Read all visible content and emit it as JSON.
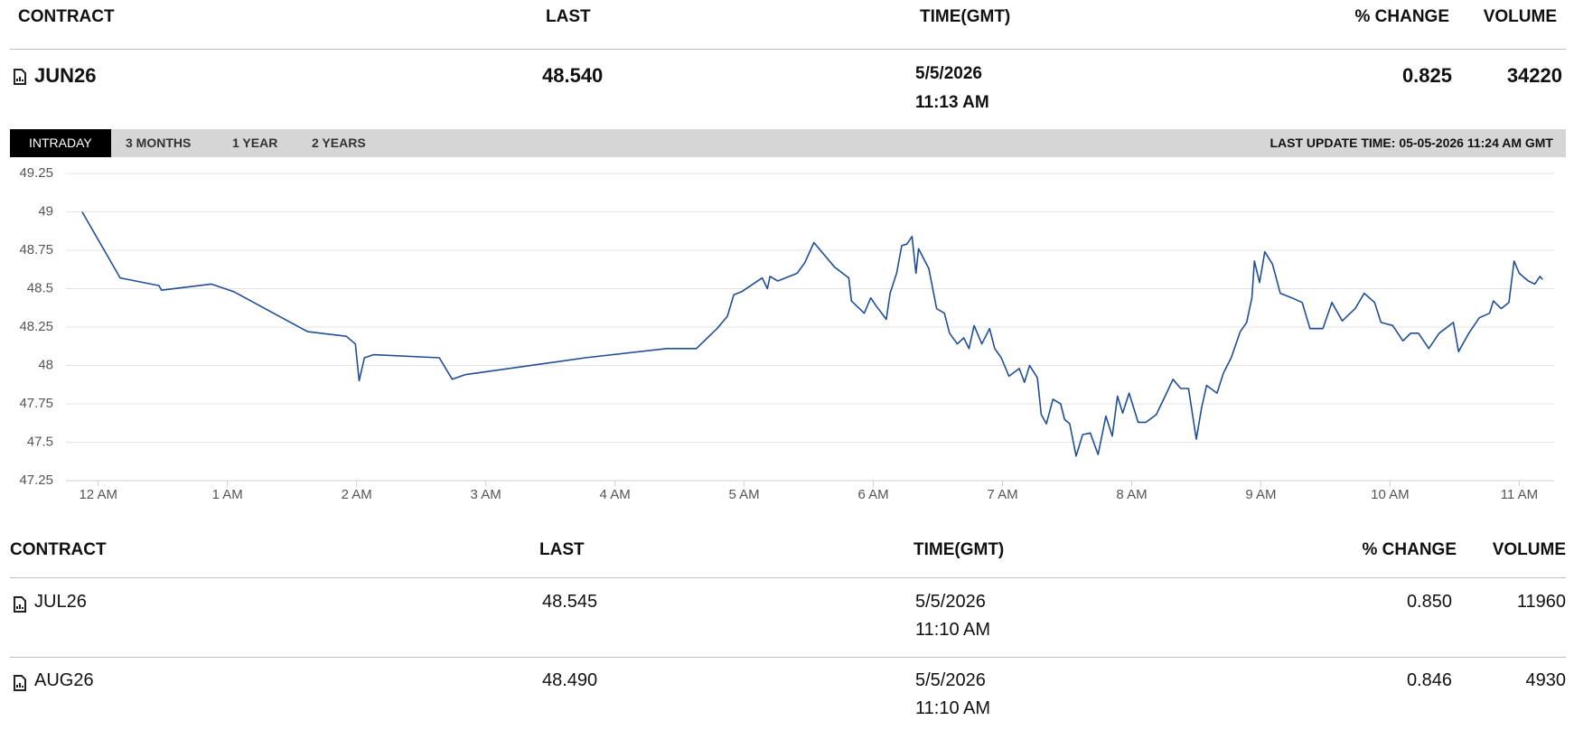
{
  "header": {
    "columns": [
      "CONTRACT",
      "LAST",
      "TIME(GMT)",
      "% CHANGE",
      "VOLUME"
    ]
  },
  "main_row": {
    "contract": "JUN26",
    "last": "48.540",
    "date": "5/5/2026",
    "time": "11:13 AM",
    "change": "0.825",
    "volume": "34220"
  },
  "tabs": [
    "INTRADAY",
    "3 MONTHS",
    "1 YEAR",
    "2 YEARS"
  ],
  "last_update": "LAST UPDATE TIME: 05-05-2026 11:24 AM GMT",
  "chart_data": {
    "type": "line",
    "x": [
      -0.125,
      0.17,
      0.47,
      0.49,
      0.875,
      1.05,
      1.62,
      1.92,
      1.99,
      2.02,
      2.06,
      2.13,
      2.64,
      2.74,
      2.84,
      3.77,
      4.4,
      4.63,
      4.79,
      4.87,
      4.92,
      4.98,
      5.14,
      5.18,
      5.2,
      5.26,
      5.41,
      5.47,
      5.54,
      5.7,
      5.81,
      5.83,
      5.93,
      5.98,
      6.02,
      6.1,
      6.13,
      6.18,
      6.22,
      6.26,
      6.3,
      6.33,
      6.35,
      6.43,
      6.49,
      6.55,
      6.59,
      6.65,
      6.7,
      6.74,
      6.78,
      6.84,
      6.9,
      6.94,
      6.99,
      7.05,
      7.13,
      7.17,
      7.21,
      7.27,
      7.3,
      7.34,
      7.39,
      7.45,
      7.48,
      7.52,
      7.57,
      7.62,
      7.68,
      7.74,
      7.8,
      7.85,
      7.89,
      7.93,
      7.98,
      8.05,
      8.11,
      8.19,
      8.27,
      8.32,
      8.38,
      8.44,
      8.5,
      8.54,
      8.58,
      8.66,
      8.71,
      8.77,
      8.84,
      8.89,
      8.93,
      8.95,
      8.99,
      9.03,
      9.09,
      9.15,
      9.24,
      9.32,
      9.38,
      9.48,
      9.55,
      9.63,
      9.73,
      9.8,
      9.88,
      9.93,
      10.02,
      10.1,
      10.16,
      10.22,
      10.3,
      10.38,
      10.49,
      10.53,
      10.61,
      10.69,
      10.77,
      10.8,
      10.86,
      10.92,
      10.96,
      11.0,
      11.07,
      11.12,
      11.16,
      11.18
    ],
    "series": [
      {
        "color": "#1f4e96",
        "values": [
          49.0,
          48.57,
          48.52,
          48.49,
          48.53,
          48.48,
          48.22,
          48.19,
          48.14,
          47.9,
          48.05,
          48.07,
          48.05,
          47.91,
          47.94,
          48.05,
          48.11,
          48.11,
          48.24,
          48.32,
          48.46,
          48.48,
          48.57,
          48.5,
          48.58,
          48.55,
          48.6,
          48.67,
          48.8,
          48.64,
          48.57,
          48.42,
          48.34,
          48.44,
          48.39,
          48.3,
          48.47,
          48.6,
          48.78,
          48.79,
          48.84,
          48.6,
          48.76,
          48.63,
          48.37,
          48.34,
          48.21,
          48.14,
          48.18,
          48.11,
          48.26,
          48.14,
          48.24,
          48.11,
          48.05,
          47.93,
          47.98,
          47.89,
          48.0,
          47.92,
          47.68,
          47.62,
          47.78,
          47.75,
          47.65,
          47.62,
          47.41,
          47.55,
          47.56,
          47.42,
          47.67,
          47.54,
          47.8,
          47.69,
          47.82,
          47.63,
          47.63,
          47.68,
          47.82,
          47.91,
          47.85,
          47.85,
          47.52,
          47.72,
          47.87,
          47.82,
          47.95,
          48.05,
          48.22,
          48.28,
          48.44,
          48.68,
          48.54,
          48.74,
          48.66,
          48.47,
          48.44,
          48.41,
          48.24,
          48.24,
          48.41,
          48.29,
          48.37,
          48.47,
          48.41,
          48.28,
          48.26,
          48.16,
          48.21,
          48.21,
          48.11,
          48.21,
          48.28,
          48.09,
          48.21,
          48.31,
          48.34,
          48.42,
          48.37,
          48.41,
          48.68,
          48.6,
          48.55,
          48.53,
          48.58,
          48.56
        ]
      }
    ],
    "xlim": [
      -0.25,
      11.27
    ],
    "xticks": [
      {
        "value": 0,
        "label": "12 AM"
      },
      {
        "value": 1,
        "label": "1 AM"
      },
      {
        "value": 2,
        "label": "2 AM"
      },
      {
        "value": 3,
        "label": "3 AM"
      },
      {
        "value": 4,
        "label": "4 AM"
      },
      {
        "value": 5,
        "label": "5 AM"
      },
      {
        "value": 6,
        "label": "6 AM"
      },
      {
        "value": 7,
        "label": "7 AM"
      },
      {
        "value": 8,
        "label": "8 AM"
      },
      {
        "value": 9,
        "label": "9 AM"
      },
      {
        "value": 10,
        "label": "10 AM"
      },
      {
        "value": 11,
        "label": "11 AM"
      }
    ],
    "ylim": [
      47.25,
      49.25
    ],
    "yticks": [
      49.25,
      49,
      48.75,
      48.5,
      48.25,
      48,
      47.75,
      47.5,
      47.25
    ],
    "grid": true
  },
  "table": {
    "columns": [
      "CONTRACT",
      "LAST",
      "TIME(GMT)",
      "% CHANGE",
      "VOLUME"
    ],
    "rows": [
      [
        "JUL26",
        "48.545",
        "5/5/2026",
        "11:10 AM",
        "0.850",
        "11960"
      ],
      [
        "AUG26",
        "48.490",
        "5/5/2026",
        "11:10 AM",
        "0.846",
        "4930"
      ]
    ]
  }
}
